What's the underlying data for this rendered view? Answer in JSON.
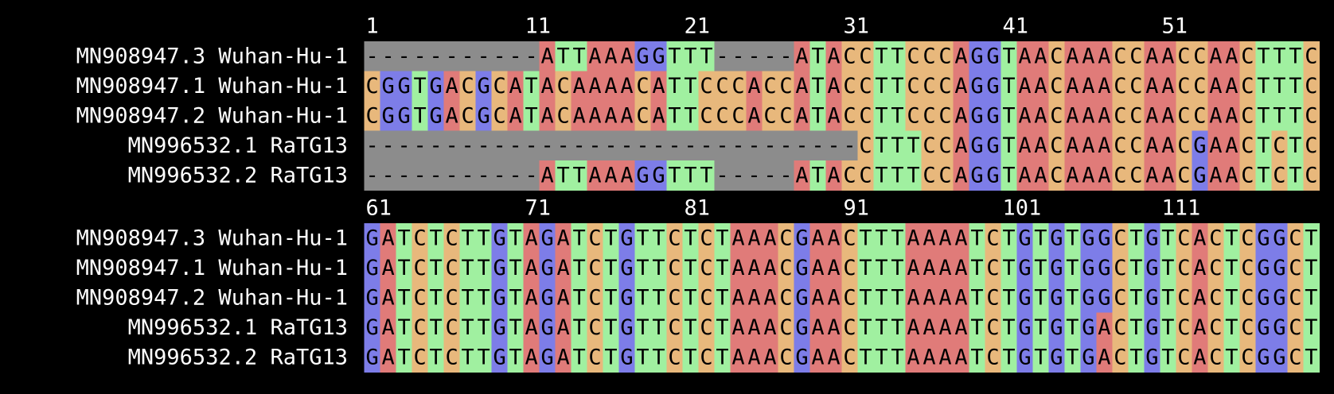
{
  "blocks": [
    {
      "positions": [
        1,
        11,
        21,
        31,
        41,
        51
      ],
      "rows": [
        {
          "name": "MN908947.3 Wuhan-Hu-1",
          "sequence": "-----------ATTAAAGGTTT-----ATACCTTCCCAGGTAACAAACCAACCAACTTTC"
        },
        {
          "name": "MN908947.1 Wuhan-Hu-1",
          "sequence": "CGGTGACGCATACAAAACATTCCCACCATACCTTCCCAGGTAACAAACCAACCAACTTTC"
        },
        {
          "name": "MN908947.2 Wuhan-Hu-1",
          "sequence": "CGGTGACGCATACAAAACATTCCCACCATACCTTCCCAGGTAACAAACCAACCAACTTTC"
        },
        {
          "name": "MN996532.1 RaTG13",
          "sequence": "-------------------------------CTTTCCAGGTAACAAACCAACGAACTCTC"
        },
        {
          "name": "MN996532.2 RaTG13",
          "sequence": "-----------ATTAAAGGTTT-----ATACCTTTCCAGGTAACAAACCAACGAACTCTC"
        }
      ]
    },
    {
      "positions": [
        61,
        71,
        81,
        91,
        101,
        111
      ],
      "rows": [
        {
          "name": "MN908947.3 Wuhan-Hu-1",
          "sequence": "GATCTCTTGTAGATCTGTTCTCTAAACGAACTTTAAAATCTGTGTGGCTGTCACTCGGCT"
        },
        {
          "name": "MN908947.1 Wuhan-Hu-1",
          "sequence": "GATCTCTTGTAGATCTGTTCTCTAAACGAACTTTAAAATCTGTGTGGCTGTCACTCGGCT"
        },
        {
          "name": "MN908947.2 Wuhan-Hu-1",
          "sequence": "GATCTCTTGTAGATCTGTTCTCTAAACGAACTTTAAAATCTGTGTGGCTGTCACTCGGCT"
        },
        {
          "name": "MN996532.1 RaTG13",
          "sequence": "GATCTCTTGTAGATCTGTTCTCTAAACGAACTTTAAAATCTGTGTGACTGTCACTCGGCT"
        },
        {
          "name": "MN996532.2 RaTG13",
          "sequence": "GATCTCTTGTAGATCTGTTCTCTAAACGAACTTTAAAATCTGTGTGACTGTCACTCGGCT"
        }
      ]
    }
  ]
}
